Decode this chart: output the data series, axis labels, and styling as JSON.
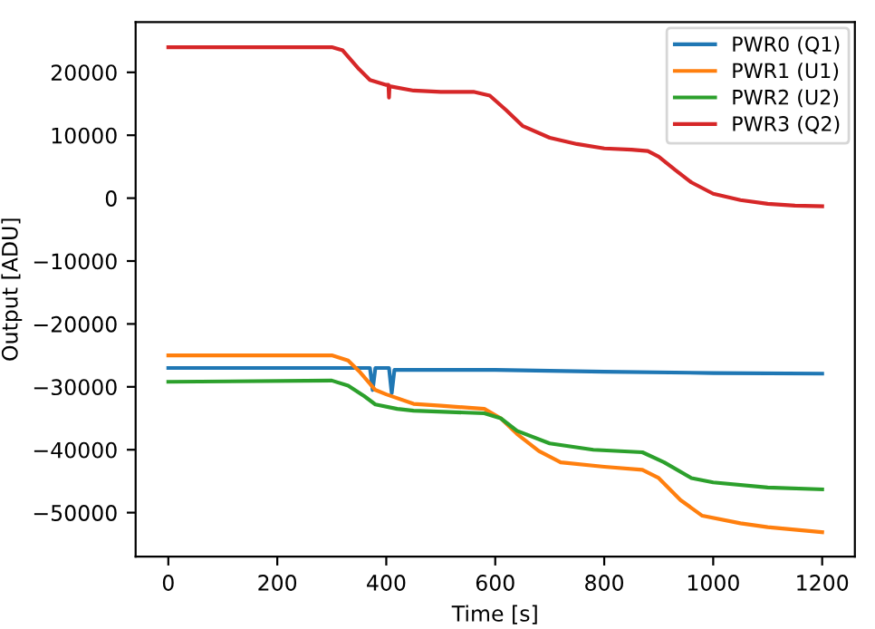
{
  "chart_data": {
    "type": "line",
    "xlabel": "Time [s]",
    "ylabel": "Output [ADU]",
    "xlim": [
      -60,
      1260
    ],
    "ylim": [
      -57000,
      28000
    ],
    "xticks": [
      0,
      200,
      400,
      600,
      800,
      1000,
      1200
    ],
    "yticks": [
      -50000,
      -40000,
      -30000,
      -20000,
      -10000,
      0,
      10000,
      20000
    ],
    "grid": false,
    "legend": "top right",
    "series": [
      {
        "name": "PWR0 (Q1)",
        "color": "#1f77b4",
        "x": [
          0,
          100,
          370,
          375,
          380,
          405,
          410,
          415,
          600,
          800,
          1000,
          1200
        ],
        "values": [
          -27000,
          -27000,
          -27000,
          -30500,
          -27000,
          -27000,
          -31000,
          -27300,
          -27300,
          -27600,
          -27800,
          -27900
        ]
      },
      {
        "name": "PWR1 (U1)",
        "color": "#ff7f0e",
        "x": [
          0,
          300,
          330,
          350,
          380,
          400,
          450,
          500,
          580,
          610,
          640,
          680,
          720,
          800,
          870,
          900,
          940,
          980,
          1050,
          1100,
          1200
        ],
        "values": [
          -25000,
          -25000,
          -25800,
          -27500,
          -30500,
          -31200,
          -32700,
          -33000,
          -33500,
          -35000,
          -37500,
          -40200,
          -42000,
          -42700,
          -43200,
          -44500,
          -48000,
          -50500,
          -51700,
          -52300,
          -53100
        ]
      },
      {
        "name": "PWR2 (U2)",
        "color": "#2ca02c",
        "x": [
          0,
          300,
          330,
          360,
          380,
          420,
          450,
          580,
          610,
          640,
          700,
          780,
          870,
          910,
          960,
          1000,
          1100,
          1200
        ],
        "values": [
          -29200,
          -29000,
          -29800,
          -31500,
          -32800,
          -33500,
          -33800,
          -34200,
          -35000,
          -37000,
          -39000,
          -40000,
          -40400,
          -42000,
          -44500,
          -45200,
          -46000,
          -46300
        ]
      },
      {
        "name": "PWR3 (Q2)",
        "color": "#d62728",
        "x": [
          0,
          300,
          320,
          350,
          370,
          400,
          404,
          405,
          406,
          450,
          500,
          560,
          590,
          620,
          650,
          700,
          750,
          800,
          850,
          880,
          900,
          930,
          960,
          1000,
          1050,
          1100,
          1150,
          1200
        ],
        "values": [
          24000,
          24000,
          23500,
          20500,
          18800,
          18000,
          18000,
          16000,
          17800,
          17100,
          16900,
          16900,
          16300,
          14000,
          11500,
          9600,
          8600,
          7900,
          7700,
          7500,
          6600,
          4500,
          2500,
          700,
          -300,
          -900,
          -1200,
          -1300
        ]
      }
    ]
  }
}
